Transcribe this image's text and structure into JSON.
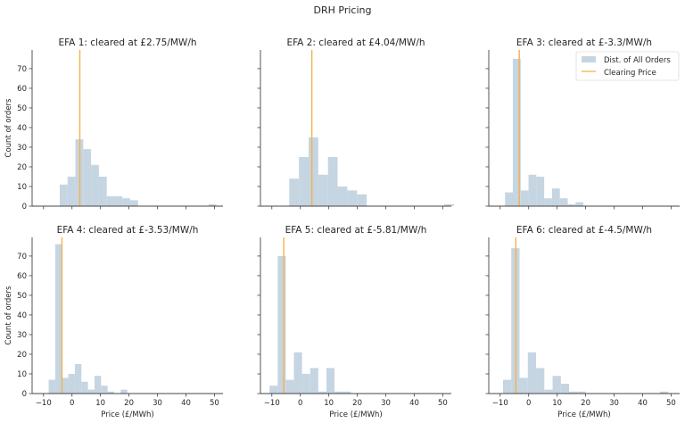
{
  "chart_data": {
    "type": "bar",
    "title": "DRH Pricing",
    "xlabel": "Price (£/MWh)",
    "ylabel": "Count of orders",
    "xlim": [
      -14,
      53
    ],
    "ylim": [
      0,
      79.5
    ],
    "xticks": [
      -10,
      0,
      10,
      20,
      30,
      40,
      50
    ],
    "xtick_labels": [
      "−10",
      "0",
      "10",
      "20",
      "30",
      "40",
      "50"
    ],
    "yticks": [
      0,
      10,
      20,
      30,
      40,
      50,
      60,
      70
    ],
    "ytick_labels": [
      "0",
      "10",
      "20",
      "30",
      "40",
      "50",
      "60",
      "70"
    ],
    "legend": {
      "position": "top-right",
      "entries": [
        "Dist. of All Orders",
        "Clearing Price"
      ]
    },
    "colors": {
      "bars": "#c6d5e2",
      "clearing": "#f2b24a",
      "axis": "#444444"
    },
    "panels": [
      {
        "title": "EFA 1: cleared at £2.75/MW/h",
        "clearing_price": 2.75,
        "bin_start": -4.3,
        "bin_width": 2.75,
        "counts": [
          11,
          15,
          34,
          29,
          21,
          15,
          5,
          5,
          4,
          3,
          0,
          0,
          0,
          0,
          0,
          0,
          0,
          0,
          0,
          1
        ]
      },
      {
        "title": "EFA 2: cleared at £4.04/MW/h",
        "clearing_price": 4.04,
        "bin_start": -3.9,
        "bin_width": 3.4,
        "counts": [
          14,
          25,
          35,
          16,
          25,
          10,
          8,
          6,
          0,
          0,
          0,
          0,
          0,
          0,
          0,
          0,
          1
        ]
      },
      {
        "title": "EFA 3: cleared at £-3.3/MW/h",
        "clearing_price": -3.3,
        "bin_start": -8.3,
        "bin_width": 2.75,
        "counts": [
          7,
          75,
          8,
          16,
          15,
          4,
          9,
          4,
          1,
          2
        ]
      },
      {
        "title": "EFA 4: cleared at £-3.53/MW/h",
        "clearing_price": -3.53,
        "bin_start": -8.2,
        "bin_width": 2.3,
        "counts": [
          7,
          76,
          8,
          10,
          15,
          6,
          2,
          9,
          4,
          1,
          0,
          2
        ]
      },
      {
        "title": "EFA 5: cleared at £-5.81/MW/h",
        "clearing_price": -5.81,
        "bin_start": -10.8,
        "bin_width": 2.85,
        "counts": [
          4,
          70,
          7,
          21,
          10,
          13,
          1,
          13,
          1,
          1
        ]
      },
      {
        "title": "EFA 6: cleared at £-4.5/MW/h",
        "clearing_price": -4.5,
        "bin_start": -9.0,
        "bin_width": 2.9,
        "counts": [
          7,
          74,
          8,
          21,
          13,
          2,
          9,
          5,
          1,
          1,
          0,
          0,
          0,
          0,
          0,
          0,
          0,
          0,
          0,
          1
        ]
      }
    ]
  }
}
